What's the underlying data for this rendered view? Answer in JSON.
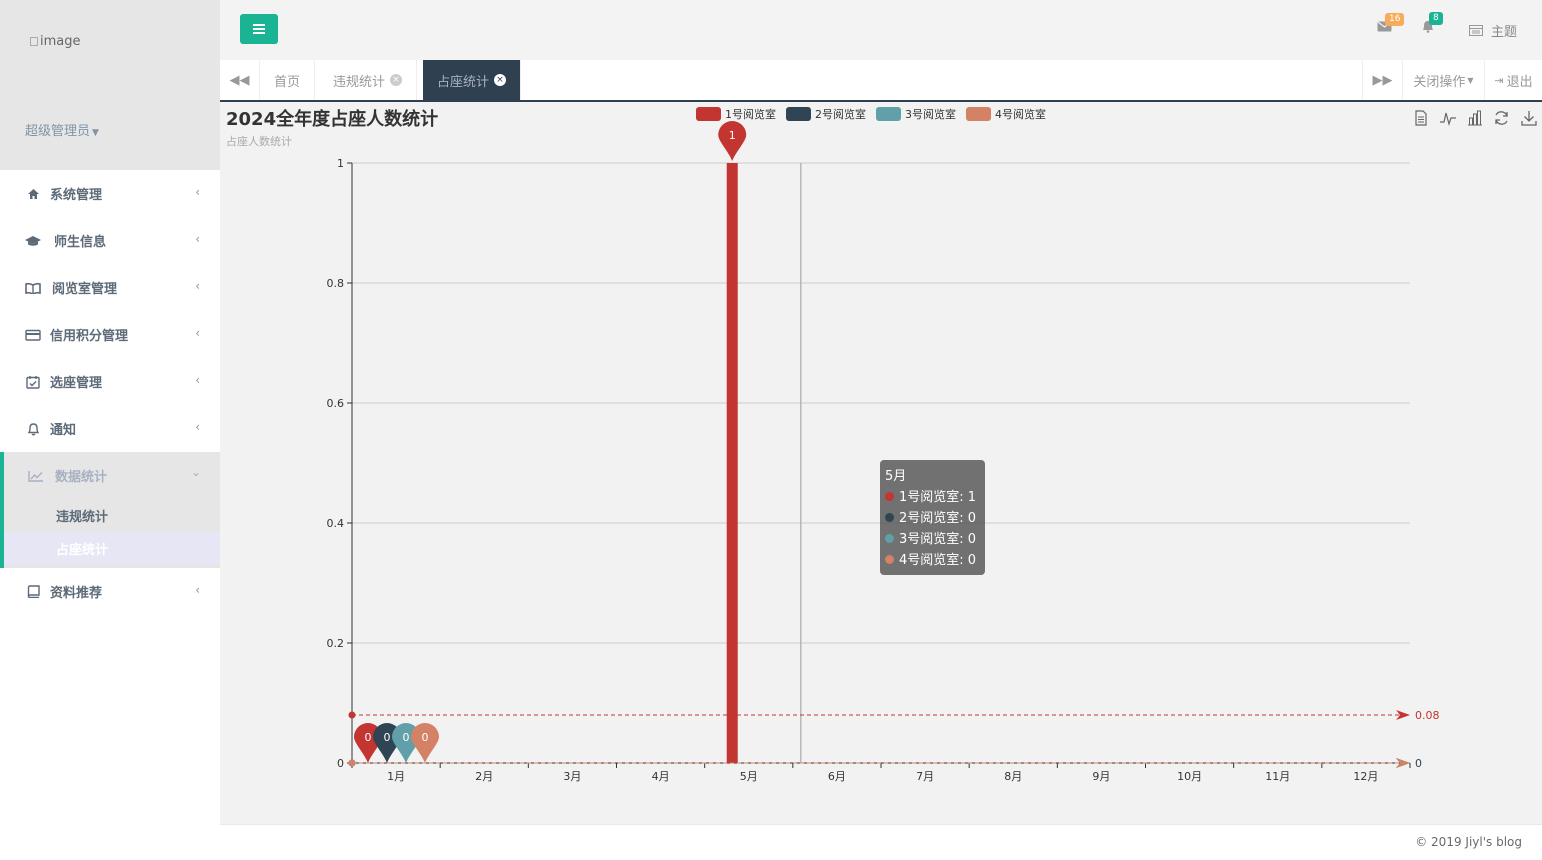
{
  "sidebar": {
    "logo_alt": "image",
    "user_name": "超级管理员",
    "items": [
      {
        "label": "系统管理",
        "icon": "home-icon"
      },
      {
        "label": "师生信息",
        "icon": "graduation-cap-icon"
      },
      {
        "label": "阅览室管理",
        "icon": "book-open-icon"
      },
      {
        "label": "信用积分管理",
        "icon": "credit-card-icon"
      },
      {
        "label": "选座管理",
        "icon": "calendar-check-icon"
      },
      {
        "label": "通知",
        "icon": "bell-icon"
      },
      {
        "label": "数据统计",
        "icon": "line-chart-icon"
      },
      {
        "label": "资料推荐",
        "icon": "book-icon"
      }
    ],
    "sub_items": [
      {
        "label": "违规统计"
      },
      {
        "label": "占座统计"
      }
    ]
  },
  "topbar": {
    "mail_count": "16",
    "bell_count": "8",
    "theme_label": "主题"
  },
  "tabs": {
    "items": [
      {
        "label": "首页"
      },
      {
        "label": "违规统计"
      },
      {
        "label": "占座统计"
      }
    ],
    "close_ops_label": "关闭操作",
    "logout_label": "退出"
  },
  "colors": {
    "accent": "#1ab394",
    "nav_dark": "#2f4050",
    "series": [
      "#c23531",
      "#2f4554",
      "#61a0a8",
      "#d48265"
    ]
  },
  "chart_data": {
    "type": "bar",
    "title": "2024全年度占座人数统计",
    "subtitle": "占座人数统计",
    "categories": [
      "1月",
      "2月",
      "3月",
      "4月",
      "5月",
      "6月",
      "7月",
      "8月",
      "9月",
      "10月",
      "11月",
      "12月"
    ],
    "series": [
      {
        "name": "1号阅览室",
        "values": [
          0,
          0,
          0,
          0,
          1,
          0,
          0,
          0,
          0,
          0,
          0,
          0
        ],
        "max_label": "1",
        "min_label": "0",
        "average_line": 0.08,
        "average_label": "0.08"
      },
      {
        "name": "2号阅览室",
        "values": [
          0,
          0,
          0,
          0,
          0,
          0,
          0,
          0,
          0,
          0,
          0,
          0
        ],
        "min_label": "0",
        "average_line": 0,
        "average_label": "0"
      },
      {
        "name": "3号阅览室",
        "values": [
          0,
          0,
          0,
          0,
          0,
          0,
          0,
          0,
          0,
          0,
          0,
          0
        ],
        "min_label": "0",
        "average_line": 0,
        "average_label": "0"
      },
      {
        "name": "4号阅览室",
        "values": [
          0,
          0,
          0,
          0,
          0,
          0,
          0,
          0,
          0,
          0,
          0,
          0
        ],
        "min_label": "0",
        "average_line": 0,
        "average_label": "0"
      }
    ],
    "y_ticks": [
      "0",
      "0.2",
      "0.4",
      "0.6",
      "0.8",
      "1"
    ],
    "ylim": [
      0,
      1
    ],
    "grid": true,
    "legend": "top-center",
    "tooltip": {
      "title": "5月",
      "rows": [
        "1号阅览室: 1",
        "2号阅览室: 0",
        "3号阅览室: 0",
        "4号阅览室: 0"
      ]
    }
  },
  "footer": {
    "copyright": "© 2019 Jiyl's blog"
  }
}
